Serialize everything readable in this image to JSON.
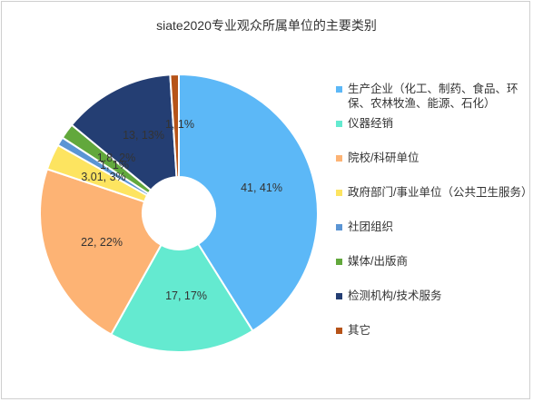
{
  "chart_data": {
    "type": "pie",
    "title": "siate2020专业观众所属单位的主要类别",
    "donut": true,
    "legend_position": "right",
    "slices": [
      {
        "name": "生产企业（化工、制药、食品、环保、农林牧渔、能源、石化）",
        "value": 41,
        "label": "41, 41%",
        "color": "#5cb8f7"
      },
      {
        "name": "仪器经销",
        "value": 17,
        "label": "17, 17%",
        "color": "#64ead0"
      },
      {
        "name": "院校/科研单位",
        "value": 22,
        "label": "22, 22%",
        "color": "#fdb374"
      },
      {
        "name": "政府部门/事业单位（公共卫生服务）",
        "value": 3.01,
        "label": "3.01, 3%",
        "color": "#fde460"
      },
      {
        "name": "社团组织",
        "value": 1,
        "label": "1, 1%",
        "color": "#5b95d4"
      },
      {
        "name": "媒体/出版商",
        "value": 1.8,
        "label": "1.8, 2%",
        "color": "#62a83c"
      },
      {
        "name": "检测机构/技术服务",
        "value": 13,
        "label": "13, 13%",
        "color": "#243e73"
      },
      {
        "name": "其它",
        "value": 1,
        "label": "1, 1%",
        "color": "#b65318"
      }
    ]
  }
}
